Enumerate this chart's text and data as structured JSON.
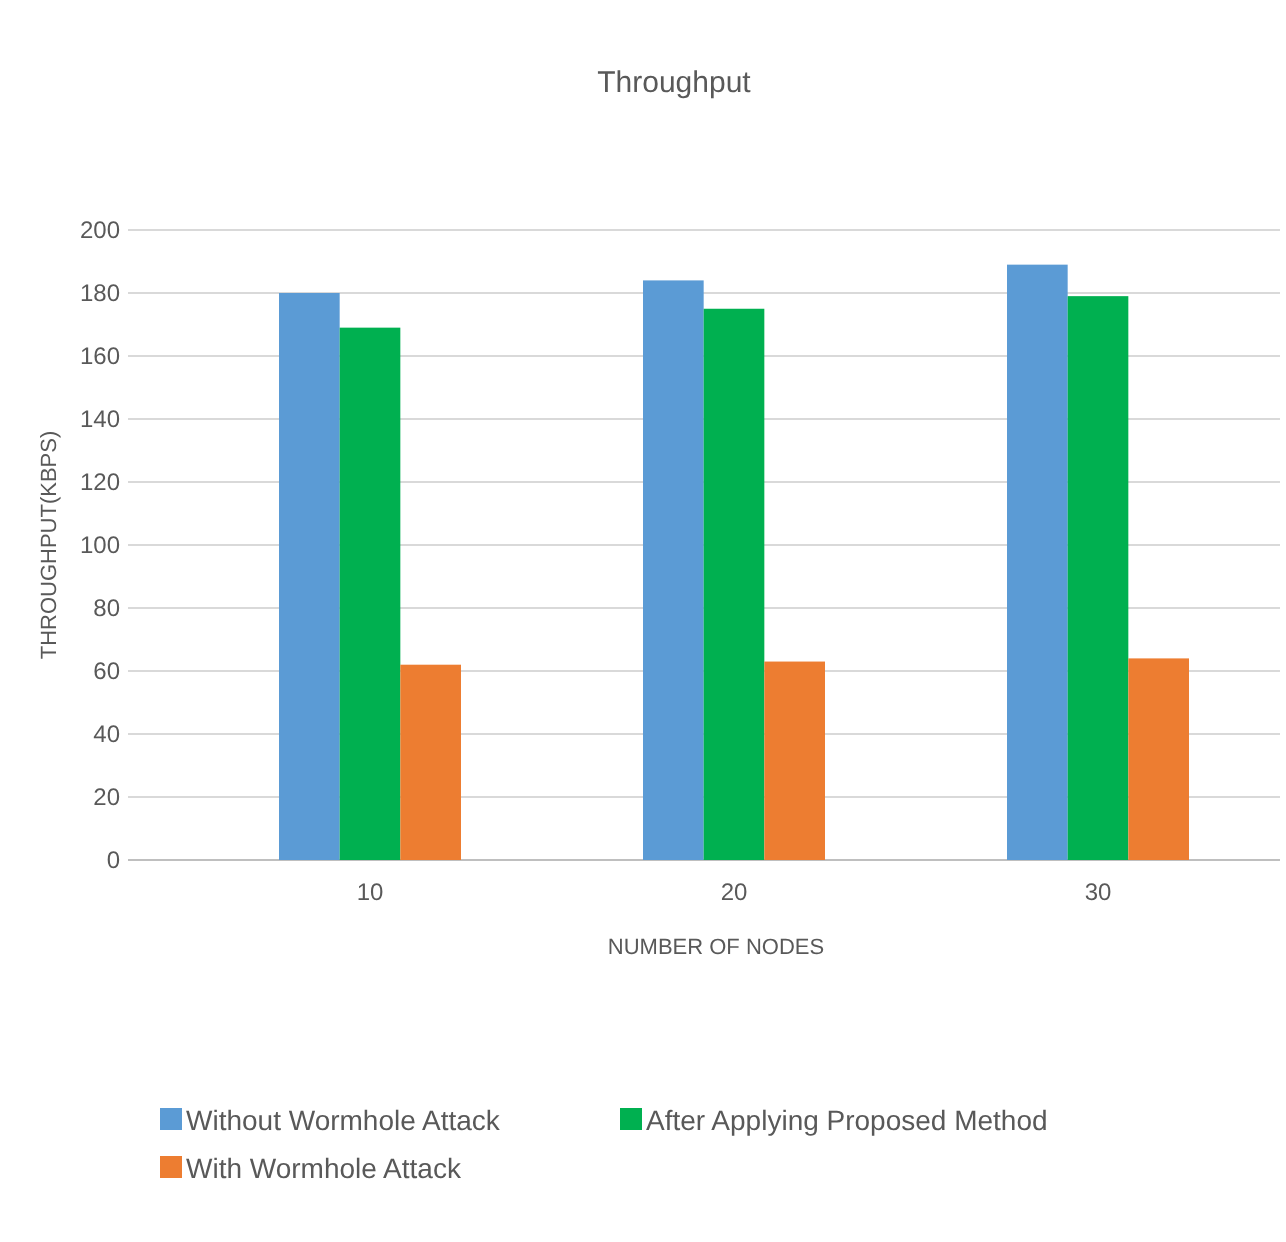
{
  "chart_data": {
    "type": "bar",
    "title": "Throughput",
    "xlabel": "NUMBER OF NODES",
    "ylabel": "THROUGHPUT(KBPS)",
    "categories": [
      "10",
      "20",
      "30"
    ],
    "series": [
      {
        "name": "Without Wormhole Attack",
        "color": "#5b9bd5",
        "values": [
          180,
          184,
          189
        ]
      },
      {
        "name": "After Applying Proposed Method",
        "color": "#00b050",
        "values": [
          169,
          175,
          179
        ]
      },
      {
        "name": "With Wormhole Attack",
        "color": "#ed7d31",
        "values": [
          62,
          63,
          64
        ]
      }
    ],
    "ylim": [
      0,
      200
    ],
    "yticks": [
      0,
      20,
      40,
      60,
      80,
      100,
      120,
      140,
      160,
      180,
      200
    ],
    "grid": "y",
    "legend": "bottom"
  }
}
